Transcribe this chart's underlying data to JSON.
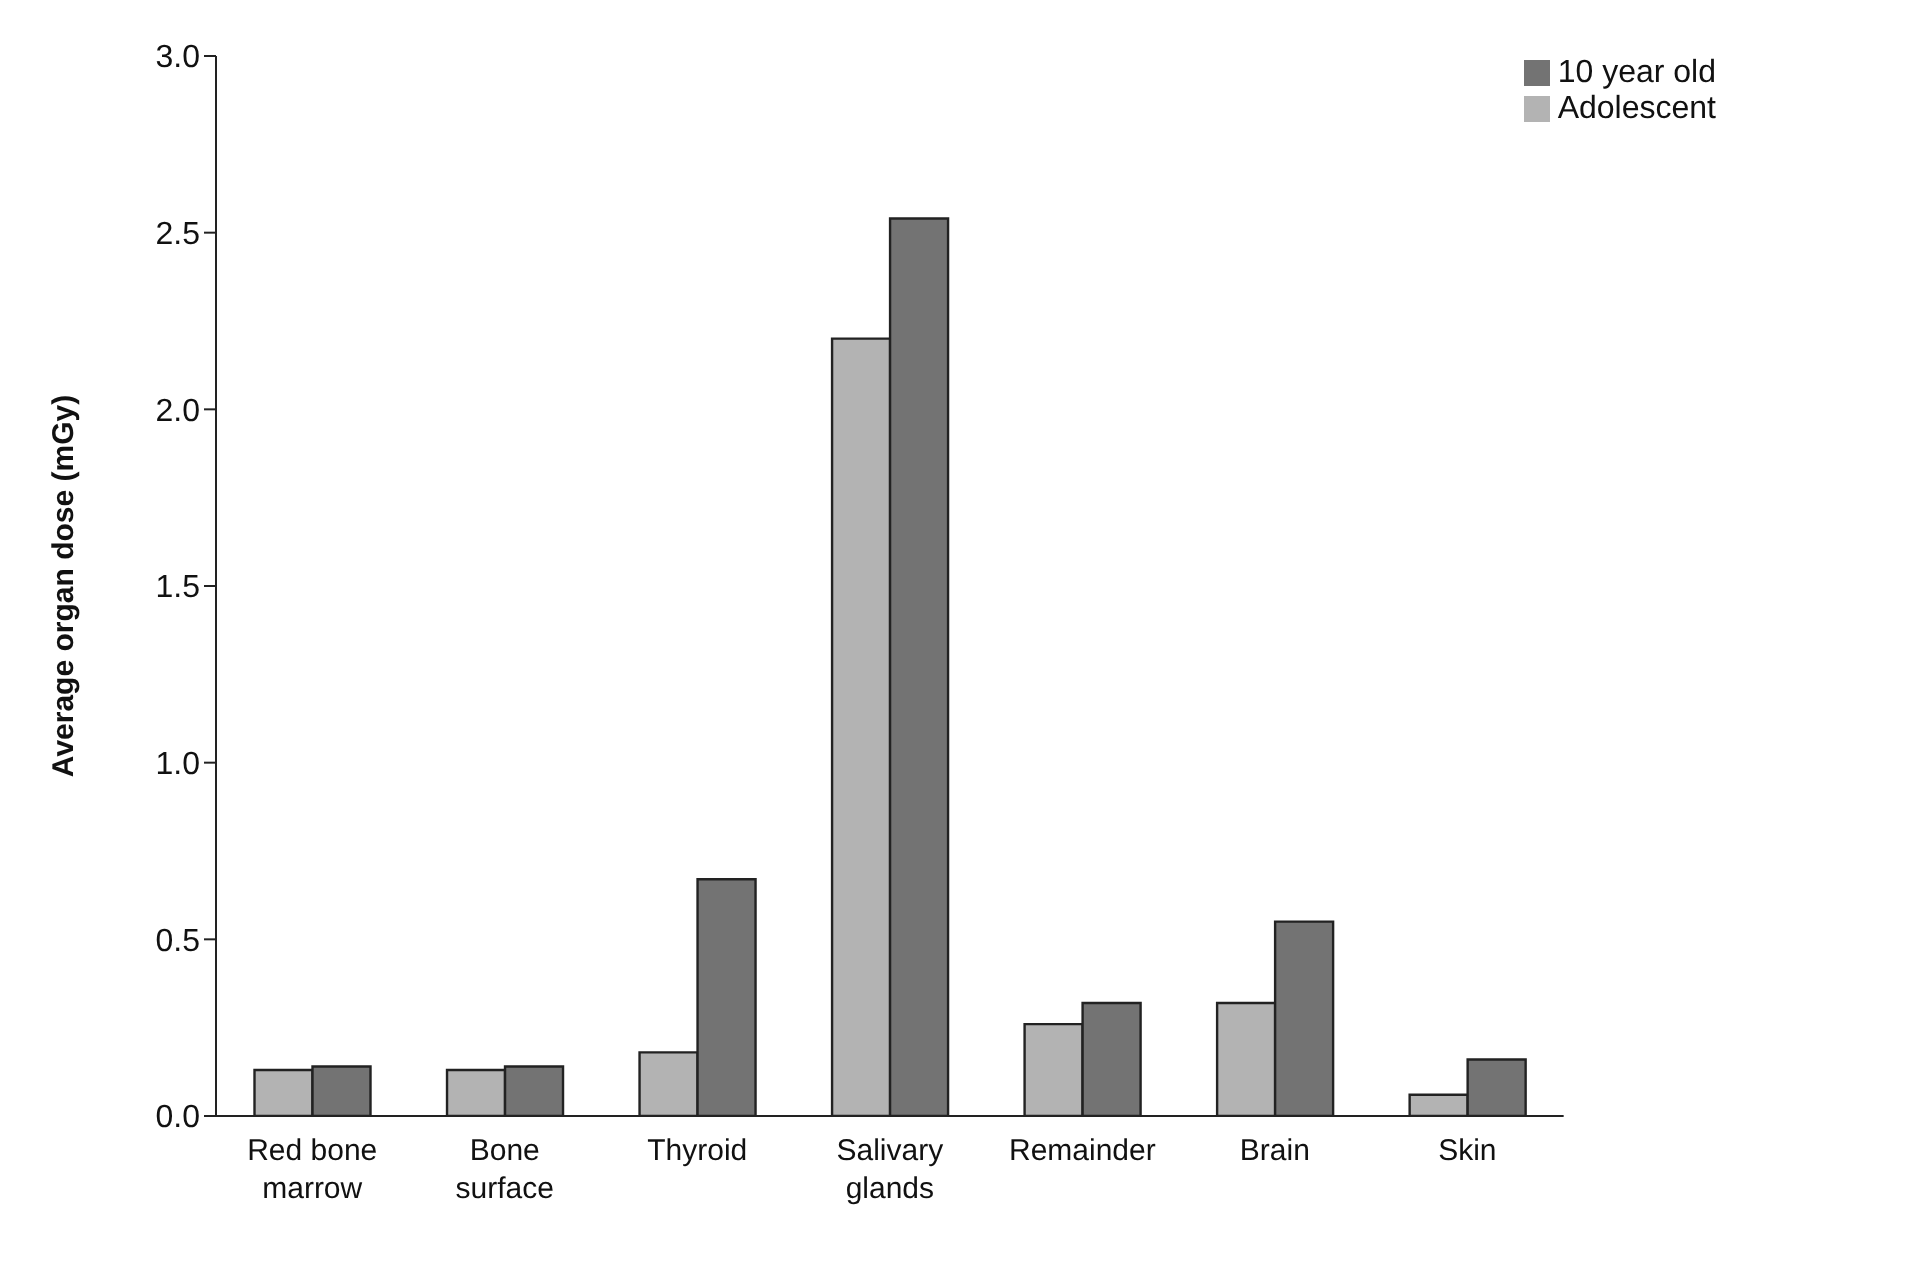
{
  "chart_data": {
    "type": "bar",
    "ylabel": "Average organ dose (mGy)",
    "categories": [
      "Red bone\nmarrow",
      "Bone\nsurface",
      "Thyroid",
      "Salivary\nglands",
      "Remainder",
      "Brain",
      "Skin"
    ],
    "series": [
      {
        "name": "Adolescent",
        "color": "#b3b3b3",
        "values": [
          0.13,
          0.13,
          0.18,
          2.2,
          0.26,
          0.32,
          0.06
        ]
      },
      {
        "name": "10 year old",
        "color": "#737373",
        "values": [
          0.14,
          0.14,
          0.67,
          2.54,
          0.32,
          0.55,
          0.16
        ]
      }
    ],
    "ylim": [
      0,
      3
    ],
    "yticks": [
      {
        "value": 0,
        "label": "0.0"
      },
      {
        "value": 0.5,
        "label": "0.5"
      },
      {
        "value": 1,
        "label": "1.0"
      },
      {
        "value": 1.5,
        "label": "1.5"
      },
      {
        "value": 2,
        "label": "2.0"
      },
      {
        "value": 2.5,
        "label": "2.5"
      },
      {
        "value": 3,
        "label": "3.0"
      }
    ],
    "grid": false,
    "legend": "top right"
  }
}
